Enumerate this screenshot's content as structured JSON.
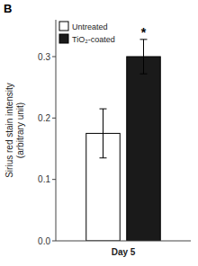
{
  "chart_data": {
    "type": "bar",
    "panel_label": "B",
    "categories": [
      "Day 5"
    ],
    "series": [
      {
        "name": "Untreated",
        "color": "#ffffff",
        "values": [
          0.175
        ],
        "errors": [
          0.04
        ]
      },
      {
        "name": "TiO₂-coated",
        "color": "#1a1a1a",
        "values": [
          0.3
        ],
        "errors": [
          0.028
        ],
        "annotation": "*"
      }
    ],
    "ylabel": "Sirius red stain intensity\n(arbitrary unit)",
    "ylim": [
      0,
      0.36
    ],
    "yticks": [
      {
        "value": 0,
        "label": "0.0"
      },
      0.1,
      0.2,
      0.3
    ],
    "grid": false,
    "legend": "upper left"
  }
}
